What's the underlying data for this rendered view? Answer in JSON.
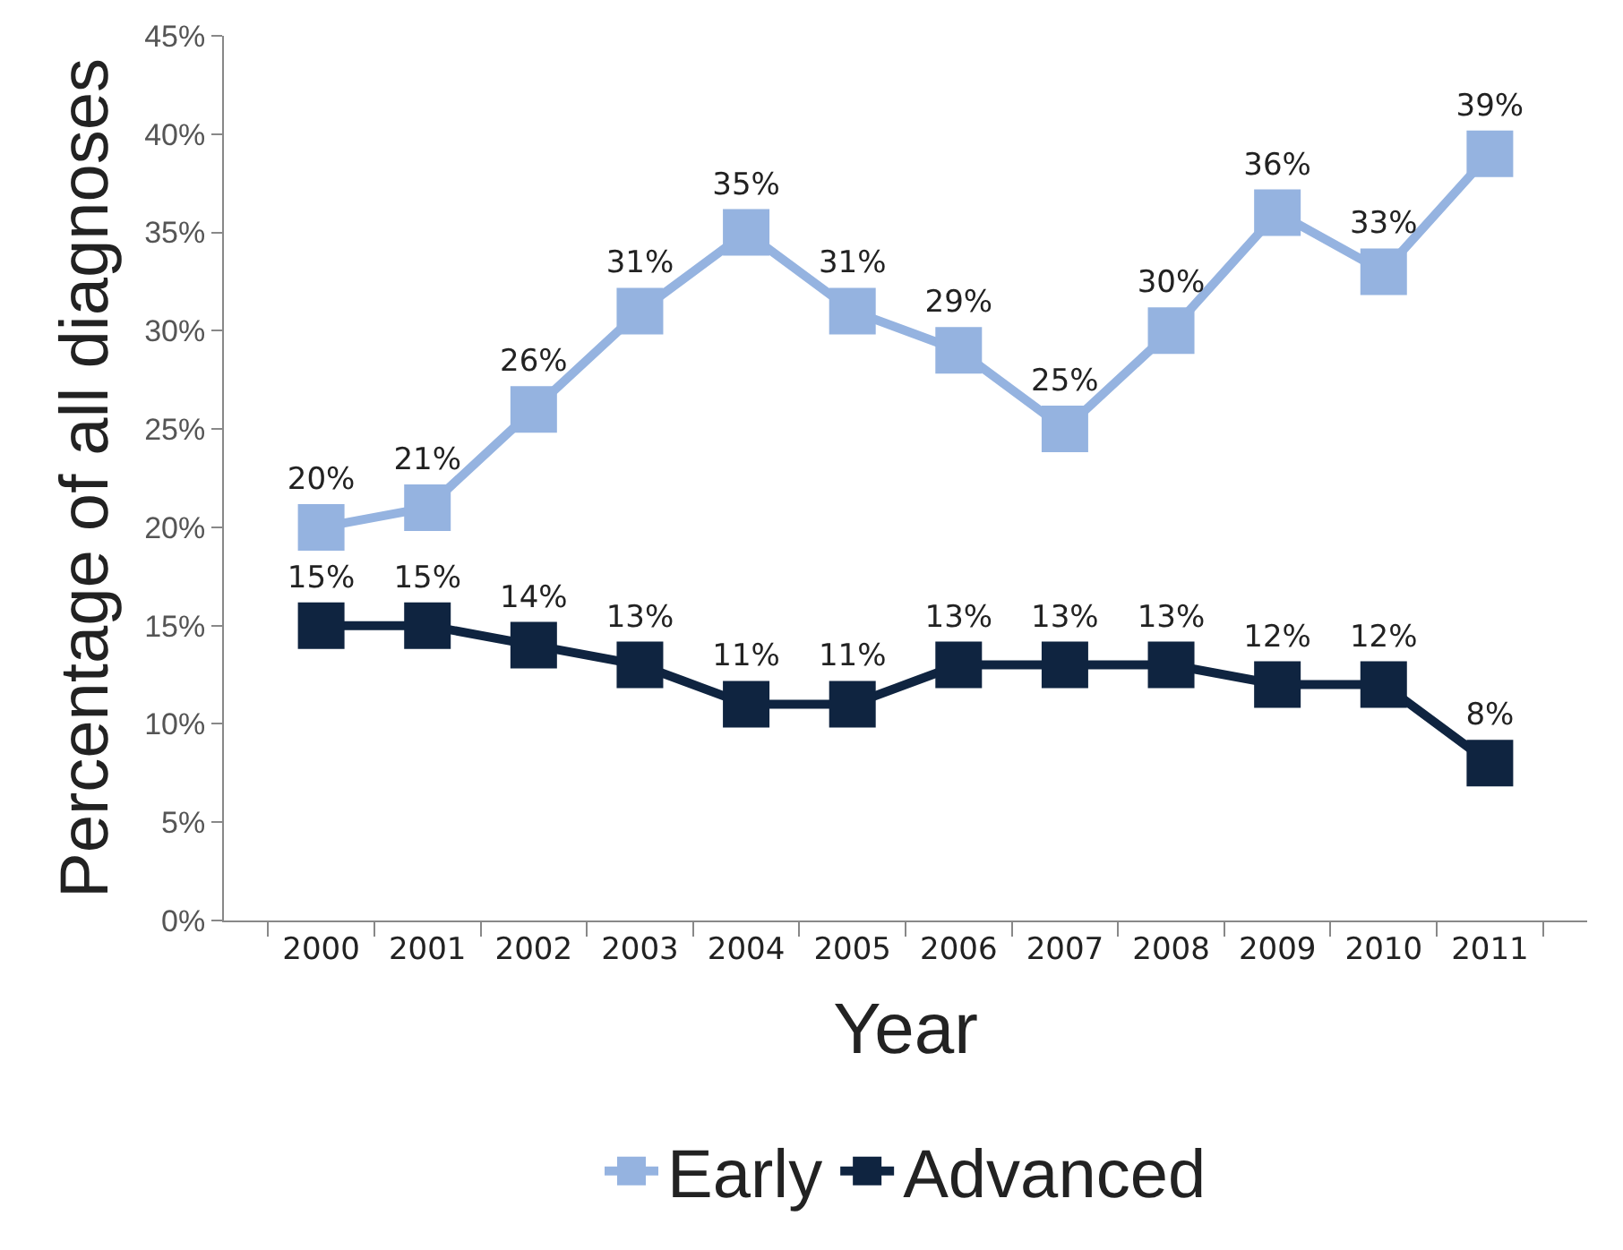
{
  "chart_data": {
    "type": "line",
    "xlabel": "Year",
    "ylabel": "Percentage of all diagnoses",
    "categories": [
      "2000",
      "2001",
      "2002",
      "2003",
      "2004",
      "2005",
      "2006",
      "2007",
      "2008",
      "2009",
      "2010",
      "2011"
    ],
    "series": [
      {
        "name": "Early",
        "color": "#95b3e0",
        "values": [
          20,
          21,
          26,
          31,
          35,
          31,
          29,
          25,
          30,
          36,
          33,
          39
        ],
        "value_labels": [
          "20%",
          "21%",
          "26%",
          "31%",
          "35%",
          "31%",
          "29%",
          "25%",
          "30%",
          "36%",
          "33%",
          "39%"
        ]
      },
      {
        "name": "Advanced",
        "color": "#0f2440",
        "values": [
          15,
          15,
          14,
          13,
          11,
          11,
          13,
          13,
          13,
          12,
          12,
          8
        ],
        "value_labels": [
          "15%",
          "15%",
          "14%",
          "13%",
          "11%",
          "11%",
          "13%",
          "13%",
          "13%",
          "12%",
          "12%",
          "8%"
        ]
      }
    ],
    "ylim": [
      0,
      45
    ],
    "yticks": [
      {
        "value": 0,
        "label": "0%"
      },
      {
        "value": 5,
        "label": "5%"
      },
      {
        "value": 10,
        "label": "10%"
      },
      {
        "value": 15,
        "label": "15%"
      },
      {
        "value": 20,
        "label": "20%"
      },
      {
        "value": 25,
        "label": "25%"
      },
      {
        "value": 30,
        "label": "30%"
      },
      {
        "value": 35,
        "label": "35%"
      },
      {
        "value": 40,
        "label": "40%"
      },
      {
        "value": 45,
        "label": "45%"
      }
    ],
    "grid": false,
    "legend": "bottom",
    "marker": "square",
    "line_style": "solid"
  }
}
